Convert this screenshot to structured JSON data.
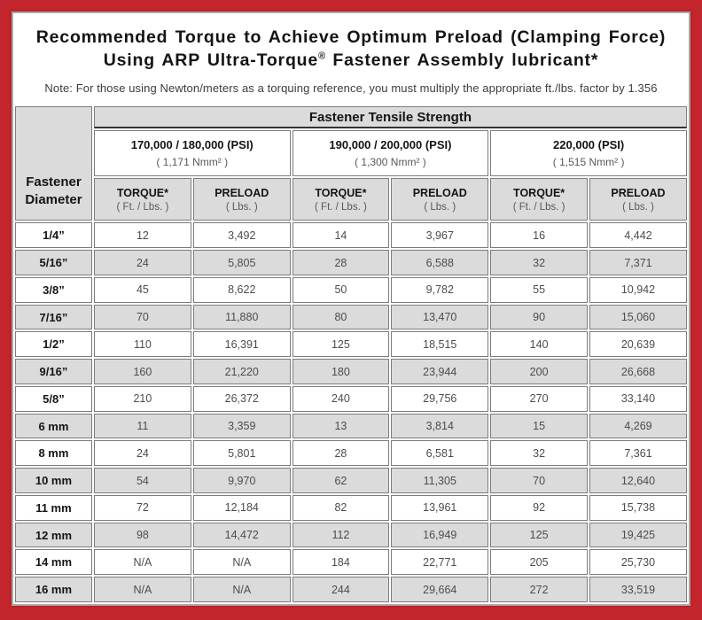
{
  "header": {
    "title_line1": "Recommended Torque to Achieve Optimum Preload (Clamping Force)",
    "title_line2_pre": "Using ARP Ultra-Torque",
    "title_line2_reg": "®",
    "title_line2_post": " Fastener Assembly lubricant*",
    "note": "Note: For those using Newton/meters as a torquing reference, you must multiply the appropriate ft./lbs. factor by 1.356"
  },
  "colors": {
    "frame_red": "#C2252B",
    "row_shade_gray": "#DBDBDB",
    "cell_border_gray": "#7C7C7C"
  },
  "table": {
    "corner_line1": "Fastener",
    "corner_line2": "Diameter",
    "tensile_header": "Fastener Tensile Strength",
    "groups": [
      {
        "psi": "170,000 / 180,000 (PSI)",
        "nmm": "( 1,171 Nmm² )"
      },
      {
        "psi": "190,000 / 200,000 (PSI)",
        "nmm": "( 1,300 Nmm² )"
      },
      {
        "psi": "220,000 (PSI)",
        "nmm": "( 1,515 Nmm² )"
      }
    ],
    "col_headers": {
      "torque_label": "TORQUE*",
      "torque_sub": "( Ft. / Lbs. )",
      "preload_label": "PRELOAD",
      "preload_sub": "( Lbs. )"
    },
    "rows": [
      {
        "d": "1/4”",
        "v": [
          "12",
          "3,492",
          "14",
          "3,967",
          "16",
          "4,442"
        ]
      },
      {
        "d": "5/16”",
        "v": [
          "24",
          "5,805",
          "28",
          "6,588",
          "32",
          "7,371"
        ]
      },
      {
        "d": "3/8”",
        "v": [
          "45",
          "8,622",
          "50",
          "9,782",
          "55",
          "10,942"
        ]
      },
      {
        "d": "7/16”",
        "v": [
          "70",
          "11,880",
          "80",
          "13,470",
          "90",
          "15,060"
        ]
      },
      {
        "d": "1/2”",
        "v": [
          "110",
          "16,391",
          "125",
          "18,515",
          "140",
          "20,639"
        ]
      },
      {
        "d": "9/16”",
        "v": [
          "160",
          "21,220",
          "180",
          "23,944",
          "200",
          "26,668"
        ]
      },
      {
        "d": "5/8”",
        "v": [
          "210",
          "26,372",
          "240",
          "29,756",
          "270",
          "33,140"
        ]
      },
      {
        "d": "6 mm",
        "v": [
          "11",
          "3,359",
          "13",
          "3,814",
          "15",
          "4,269"
        ]
      },
      {
        "d": "8 mm",
        "v": [
          "24",
          "5,801",
          "28",
          "6,581",
          "32",
          "7,361"
        ]
      },
      {
        "d": "10 mm",
        "v": [
          "54",
          "9,970",
          "62",
          "11,305",
          "70",
          "12,640"
        ]
      },
      {
        "d": "11 mm",
        "v": [
          "72",
          "12,184",
          "82",
          "13,961",
          "92",
          "15,738"
        ]
      },
      {
        "d": "12 mm",
        "v": [
          "98",
          "14,472",
          "112",
          "16,949",
          "125",
          "19,425"
        ]
      },
      {
        "d": "14 mm",
        "v": [
          "N/A",
          "N/A",
          "184",
          "22,771",
          "205",
          "25,730"
        ]
      },
      {
        "d": "16 mm",
        "v": [
          "N/A",
          "N/A",
          "244",
          "29,664",
          "272",
          "33,519"
        ]
      }
    ]
  }
}
